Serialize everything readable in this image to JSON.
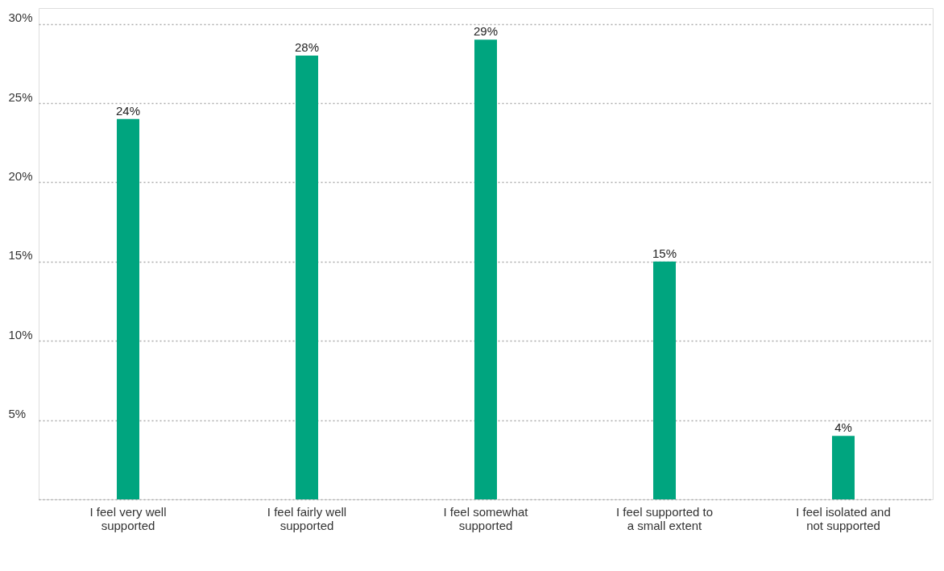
{
  "chart_data": {
    "type": "bar",
    "categories": [
      "I feel very well supported",
      "I feel fairly well supported",
      "I feel somewhat supported",
      "I feel supported to a small extent",
      "I feel isolated and not supported"
    ],
    "values": [
      24,
      28,
      29,
      15,
      4
    ],
    "value_labels": [
      "24%",
      "28%",
      "29%",
      "15%",
      "4%"
    ],
    "color": "#00a57f",
    "ylim": [
      0,
      31
    ],
    "yticks": [
      {
        "value": 0,
        "label": null
      },
      {
        "value": 5,
        "label": "5%"
      },
      {
        "value": 10,
        "label": "10%"
      },
      {
        "value": 15,
        "label": "15%"
      },
      {
        "value": 20,
        "label": "20%"
      },
      {
        "value": 25,
        "label": "25%"
      },
      {
        "value": 30,
        "label": "30%"
      }
    ],
    "grid": "y"
  }
}
